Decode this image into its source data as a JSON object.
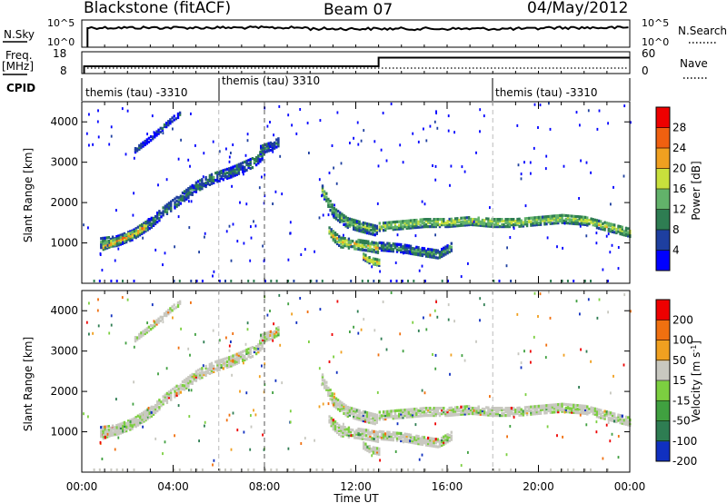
{
  "header": {
    "station": "Blackstone (fitACF)",
    "beam": "Beam 07",
    "date": "04/May/2012"
  },
  "top_panels": {
    "nsky_label": "N.Sky",
    "nsky_tick_hi": "10^5",
    "nsky_tick_lo": "10^0",
    "nsearch_label": "N.Search",
    "freq_label": "Freq.",
    "freq_unit": "[MHz]",
    "freq_tick_hi": "18",
    "freq_tick_lo": "8",
    "nave_tick_hi": "60",
    "nave_tick_lo": "0",
    "nave_label": "Nave",
    "cpid_label": "CPID",
    "cpid_segments": [
      {
        "text": "themis (tau) -3310"
      },
      {
        "text": "themis (tau) 3310"
      },
      {
        "text": "themis (tau) -3310"
      }
    ]
  },
  "chart_data": [
    {
      "type": "heatmap",
      "name_panel": "power",
      "ylabel": "Slant Range [km]",
      "xlabel": "",
      "x_range_hours": [
        0,
        24
      ],
      "ylim": [
        0,
        4500
      ],
      "yticks": [
        "1000",
        "2000",
        "3000",
        "4000"
      ],
      "colorbar": {
        "label": "Power [dB]",
        "ticks": [
          "4",
          "8",
          "12",
          "16",
          "20",
          "24",
          "28"
        ],
        "range": [
          0,
          32
        ],
        "colors": [
          "#0000ff",
          "#1e3fa0",
          "#2e7d52",
          "#62b26a",
          "#c8e03c",
          "#f0a020",
          "#f06010",
          "#ee0000"
        ]
      },
      "echo_bands": [
        {
          "t": [
            0.8,
            1.5,
            2.2,
            3.0,
            3.6,
            4.3,
            5.0,
            5.7,
            6.5,
            7.5,
            8.0
          ],
          "r": [
            1050,
            1100,
            1250,
            1550,
            1850,
            2150,
            2450,
            2650,
            2800,
            3050,
            3300
          ],
          "w": 260,
          "p": 10
        },
        {
          "t": [
            0.9,
            1.6,
            2.4,
            2.8
          ],
          "r": [
            950,
            1100,
            1300,
            1450
          ],
          "w": 150,
          "p": 24
        },
        {
          "t": [
            2.3,
            3.0,
            3.6,
            4.0,
            4.3
          ],
          "r": [
            3350,
            3650,
            3950,
            4150,
            4250
          ],
          "w": 130,
          "p": 6
        },
        {
          "t": [
            7.8,
            8.3,
            8.6
          ],
          "r": [
            3350,
            3450,
            3550
          ],
          "w": 200,
          "p": 10
        },
        {
          "t": [
            10.5,
            11.0,
            11.6,
            12.2,
            12.9
          ],
          "r": [
            2350,
            1800,
            1550,
            1450,
            1350
          ],
          "w": 260,
          "p": 14
        },
        {
          "t": [
            10.8,
            11.3,
            12.0,
            12.6,
            13.0
          ],
          "r": [
            1300,
            1050,
            1000,
            950,
            900
          ],
          "w": 230,
          "p": 20
        },
        {
          "t": [
            12.3,
            12.6,
            13.0
          ],
          "r": [
            700,
            600,
            550
          ],
          "w": 150,
          "p": 22
        },
        {
          "t": [
            13.0,
            14.0,
            15.0,
            16.0,
            17.0,
            18.0,
            19.0,
            20.0,
            21.0,
            22.0,
            23.0,
            24.0
          ],
          "r": [
            1450,
            1500,
            1550,
            1550,
            1600,
            1550,
            1550,
            1600,
            1650,
            1600,
            1450,
            1300
          ],
          "w": 220,
          "p": 18
        },
        {
          "t": [
            13.0,
            14.0,
            15.0,
            15.6,
            16.2
          ],
          "r": [
            950,
            900,
            800,
            750,
            950
          ],
          "w": 180,
          "p": 12
        }
      ]
    },
    {
      "type": "heatmap",
      "name_panel": "velocity",
      "ylabel": "Slant Range [km]",
      "xlabel": "Time UT",
      "x_range_hours": [
        0,
        24
      ],
      "xticks": [
        "00:00",
        "04:00",
        "08:00",
        "12:00",
        "16:00",
        "20:00",
        "00:00"
      ],
      "ylim": [
        0,
        4500
      ],
      "yticks": [
        "1000",
        "2000",
        "3000",
        "4000"
      ],
      "colorbar": {
        "label": "Velocity [m s^-1]",
        "ticks": [
          "200",
          "100",
          "50",
          "15",
          "-15",
          "-50",
          "-100",
          "-200"
        ],
        "colors": [
          "#1030c0",
          "#2e7d52",
          "#40a040",
          "#7ccf40",
          "#c8c8c0",
          "#f0a020",
          "#f07010",
          "#ee0000"
        ]
      }
    }
  ]
}
